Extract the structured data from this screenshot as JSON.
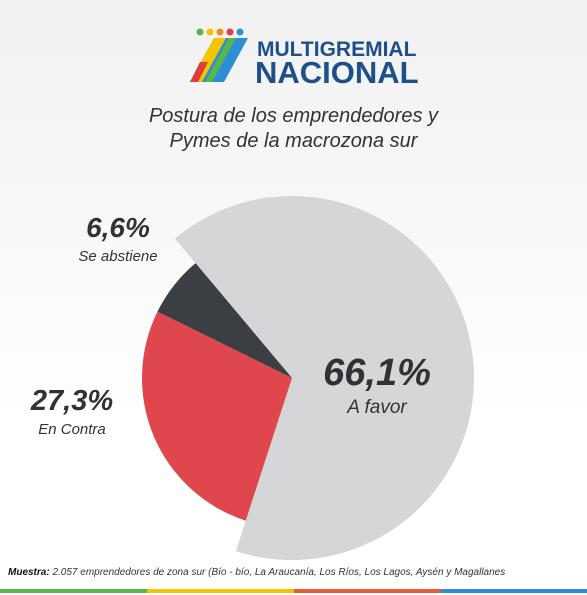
{
  "header": {
    "logo_line1": "MULTIGREMIAL",
    "logo_line2": "NACIONAL"
  },
  "chart_data": {
    "type": "pie",
    "title": "Postura de los emprendedores y Pymes de la macrozona sur",
    "categories": [
      "A favor",
      "En Contra",
      "Se abstiene"
    ],
    "values": [
      66.1,
      27.3,
      6.6
    ],
    "value_labels": [
      "66,1%",
      "27,3%",
      "6,6%"
    ],
    "colors": [
      "#d5d6d8",
      "#e0474c",
      "#3b3f43"
    ]
  },
  "footer": {
    "label": "Muestra:",
    "text": "2.057 emprendedores de zona sur (Bío - bío, La Araucanía, Los Ríos, Los Lagos, Aysén y Magallanes"
  }
}
